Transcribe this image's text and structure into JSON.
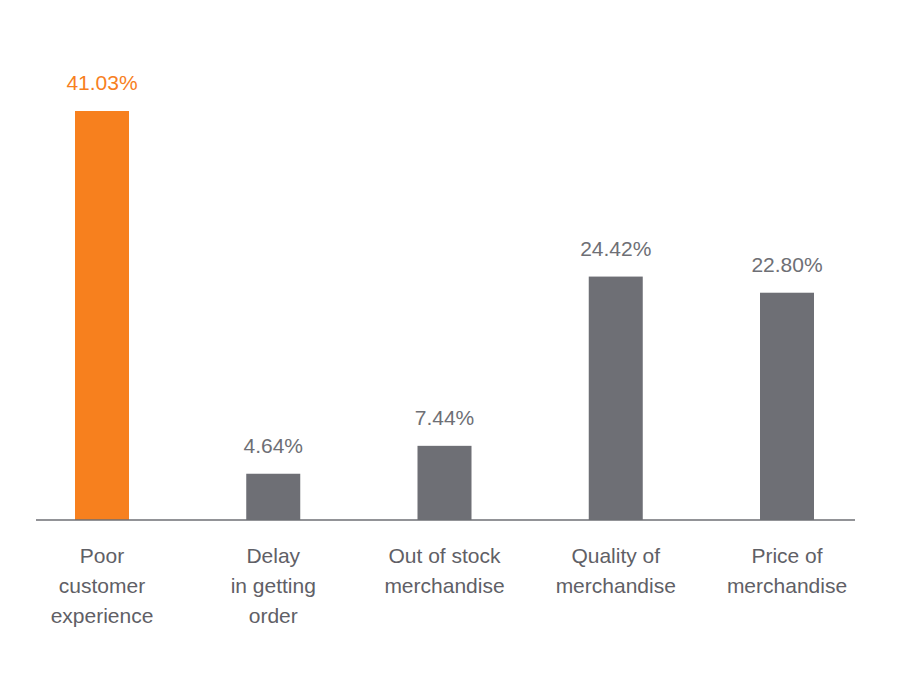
{
  "chart_data": {
    "type": "bar",
    "categories": [
      "Poor\ncustomer\nexperience",
      "Delay\nin getting\norder",
      "Out of stock\nmerchandise",
      "Quality of\nmerchandise",
      "Price of\nmerchandise"
    ],
    "values": [
      41.03,
      4.64,
      7.44,
      24.42,
      22.8
    ],
    "value_labels": [
      "41.03%",
      "4.64%",
      "7.44%",
      "24.42%",
      "22.80%"
    ],
    "colors": [
      "#f7801e",
      "#6e6f75",
      "#6e6f75",
      "#6e6f75",
      "#6e6f75"
    ],
    "data_labels": true,
    "tick_labels": false,
    "grid": false
  }
}
